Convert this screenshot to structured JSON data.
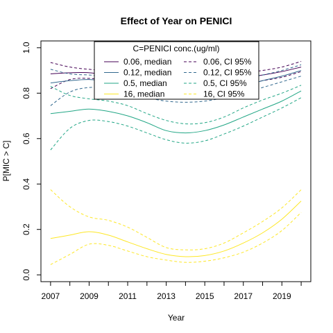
{
  "chart_data": {
    "type": "line",
    "title": "Effect of Year on PENICI",
    "xlabel": "Year",
    "ylabel": "P[MIC > C]",
    "xlim": [
      2006.5,
      2020.5
    ],
    "ylim": [
      -0.03,
      1.03
    ],
    "xticks": [
      2007,
      2008,
      2009,
      2010,
      2011,
      2012,
      2013,
      2014,
      2015,
      2016,
      2017,
      2018,
      2019,
      2020
    ],
    "xtick_labels": [
      2007,
      2009,
      2011,
      2013,
      2015,
      2017,
      2019
    ],
    "yticks": [
      0.0,
      0.2,
      0.4,
      0.6,
      0.8,
      1.0
    ],
    "ytick_labels": [
      "0.0",
      "0.2",
      "0.4",
      "0.6",
      "0.8",
      "1.0"
    ],
    "legend": {
      "title": "C=PENICI conc.(ug/ml)",
      "position": "top-center",
      "entries": [
        {
          "label": "0.06, median",
          "color": "#440154",
          "style": "solid"
        },
        {
          "label": "0.06, CI 95%",
          "color": "#440154",
          "style": "dashed"
        },
        {
          "label": "0.12, median",
          "color": "#31688e",
          "style": "solid"
        },
        {
          "label": "0.12, CI 95%",
          "color": "#31688e",
          "style": "dashed"
        },
        {
          "label": "0.5, median",
          "color": "#21a685",
          "style": "solid"
        },
        {
          "label": "0.5, CI 95%",
          "color": "#21a685",
          "style": "dashed"
        },
        {
          "label": "16, median",
          "color": "#fde725",
          "style": "solid"
        },
        {
          "label": "16, CI 95%",
          "color": "#fde725",
          "style": "dashed"
        }
      ]
    },
    "x": [
      2007,
      2008,
      2009,
      2010,
      2011,
      2012,
      2013,
      2014,
      2015,
      2016,
      2017,
      2018,
      2019,
      2020
    ],
    "series": [
      {
        "name": "0.06, median",
        "color": "#440154",
        "style": "solid",
        "values": [
          0.885,
          0.89,
          0.89,
          0.88,
          0.87,
          0.86,
          0.85,
          0.845,
          0.85,
          0.86,
          0.87,
          0.88,
          0.895,
          0.915
        ]
      },
      {
        "name": "0.06, CI 95%",
        "color": "#440154",
        "style": "dashed",
        "values": [
          0.935,
          0.915,
          0.905,
          0.9,
          0.9,
          0.89,
          0.875,
          0.87,
          0.875,
          0.885,
          0.89,
          0.9,
          0.915,
          0.94
        ]
      },
      {
        "name": "0.06, CI 95%",
        "color": "#440154",
        "style": "dashed",
        "values": [
          0.82,
          0.86,
          0.865,
          0.855,
          0.84,
          0.825,
          0.81,
          0.805,
          0.81,
          0.825,
          0.84,
          0.855,
          0.87,
          0.895
        ]
      },
      {
        "name": "0.12, median",
        "color": "#31688e",
        "style": "solid",
        "values": [
          0.845,
          0.855,
          0.86,
          0.85,
          0.835,
          0.815,
          0.795,
          0.79,
          0.795,
          0.81,
          0.83,
          0.855,
          0.875,
          0.9
        ]
      },
      {
        "name": "0.12, CI 95%",
        "color": "#31688e",
        "style": "dashed",
        "values": [
          0.905,
          0.885,
          0.88,
          0.875,
          0.87,
          0.855,
          0.84,
          0.835,
          0.84,
          0.85,
          0.865,
          0.88,
          0.9,
          0.925
        ]
      },
      {
        "name": "0.12, CI 95%",
        "color": "#31688e",
        "style": "dashed",
        "values": [
          0.745,
          0.805,
          0.825,
          0.82,
          0.8,
          0.78,
          0.765,
          0.76,
          0.765,
          0.78,
          0.8,
          0.825,
          0.85,
          0.875
        ]
      },
      {
        "name": "0.5, median",
        "color": "#21a685",
        "style": "solid",
        "values": [
          0.71,
          0.72,
          0.73,
          0.72,
          0.7,
          0.67,
          0.635,
          0.625,
          0.635,
          0.66,
          0.695,
          0.73,
          0.765,
          0.81
        ]
      },
      {
        "name": "0.5, CI 95%",
        "color": "#21a685",
        "style": "dashed",
        "values": [
          0.83,
          0.79,
          0.775,
          0.765,
          0.745,
          0.71,
          0.68,
          0.665,
          0.67,
          0.695,
          0.735,
          0.77,
          0.8,
          0.835
        ]
      },
      {
        "name": "0.5, CI 95%",
        "color": "#21a685",
        "style": "dashed",
        "values": [
          0.55,
          0.645,
          0.68,
          0.675,
          0.655,
          0.625,
          0.595,
          0.58,
          0.59,
          0.62,
          0.655,
          0.695,
          0.735,
          0.78
        ]
      },
      {
        "name": "16, median",
        "color": "#fde725",
        "style": "solid",
        "values": [
          0.16,
          0.175,
          0.19,
          0.175,
          0.145,
          0.115,
          0.09,
          0.08,
          0.085,
          0.105,
          0.14,
          0.185,
          0.245,
          0.325
        ]
      },
      {
        "name": "16, CI 95%",
        "color": "#fde725",
        "style": "dashed",
        "values": [
          0.375,
          0.3,
          0.255,
          0.24,
          0.21,
          0.165,
          0.12,
          0.11,
          0.115,
          0.14,
          0.185,
          0.235,
          0.295,
          0.375
        ]
      },
      {
        "name": "16, CI 95%",
        "color": "#fde725",
        "style": "dashed",
        "values": [
          0.045,
          0.09,
          0.135,
          0.13,
          0.105,
          0.08,
          0.065,
          0.055,
          0.06,
          0.075,
          0.1,
          0.14,
          0.195,
          0.275
        ]
      }
    ]
  }
}
